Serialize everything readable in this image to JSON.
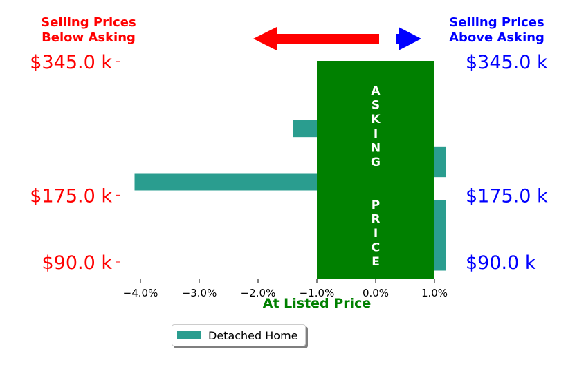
{
  "chart_data": {
    "type": "bar",
    "orientation": "horizontal",
    "series": [
      {
        "name": "Detached Home",
        "color": "#2a9d8f",
        "points": [
          {
            "price_k": 90,
            "value": 1.2
          },
          {
            "price_k": 107,
            "value": 1.2
          },
          {
            "price_k": 124,
            "value": 1.2
          },
          {
            "price_k": 141,
            "value": 1.2
          },
          {
            "price_k": 158,
            "value": 1.2
          },
          {
            "price_k": 192,
            "value": -4.1
          },
          {
            "price_k": 209,
            "value": 1.2
          },
          {
            "price_k": 226,
            "value": 1.2
          },
          {
            "price_k": 260,
            "value": -1.4
          }
        ]
      }
    ],
    "x_ticks": [
      "−4.0%",
      "−3.0%",
      "−2.0%",
      "−1.0%",
      "0.0%",
      "1.0%"
    ],
    "x_tick_values": [
      -4,
      -3,
      -2,
      -1,
      0,
      1
    ],
    "xlim": [
      -4.2,
      1.3
    ],
    "ylim": [
      85,
      345
    ],
    "y_ticks_left": [
      "$345.0 k",
      "$175.0 k",
      "$90.0 k"
    ],
    "y_ticks_right": [
      "$345.0 k",
      "$175.0 k",
      "$90.0 k"
    ],
    "y_tick_values": [
      345,
      175,
      90
    ],
    "xlabel": "At Listed Price",
    "band": {
      "from": -1,
      "to": 1,
      "color": "#008000",
      "label": "ASKING  PRICE"
    },
    "left_annotation": "Selling Prices\nBelow Asking",
    "right_annotation": "Selling Prices\nAbove Asking",
    "colors": {
      "below": "#ff0000",
      "above": "#0000ff",
      "asking": "#008000"
    }
  },
  "legend": {
    "label": "Detached Home"
  }
}
